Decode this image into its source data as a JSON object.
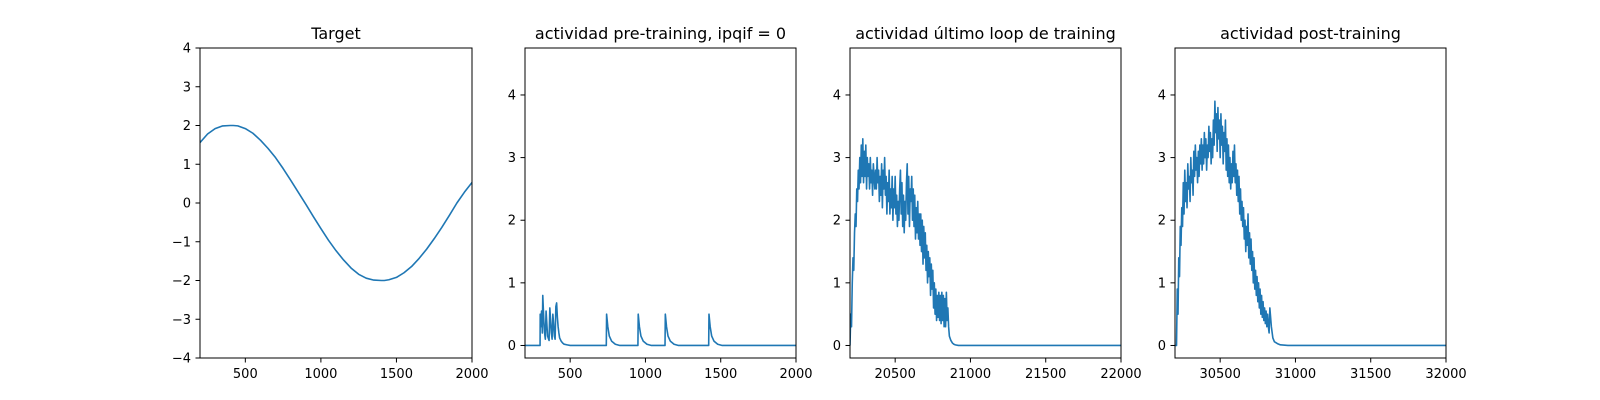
{
  "chart_data": [
    {
      "type": "line",
      "title": "Target",
      "xlim": [
        200,
        2000
      ],
      "ylim": [
        -4,
        4
      ],
      "xticks": [
        500,
        1000,
        1500,
        2000
      ],
      "yticks": [
        -4,
        -3,
        -2,
        -1,
        0,
        1,
        2,
        3,
        4
      ],
      "color": "#1f77b4",
      "series": [
        {
          "x": [
            200,
            250,
            300,
            350,
            400,
            420,
            450,
            500,
            550,
            600,
            650,
            700,
            750,
            800,
            850,
            900,
            950,
            1000,
            1050,
            1100,
            1150,
            1200,
            1250,
            1300,
            1350,
            1400,
            1420,
            1450,
            1500,
            1550,
            1600,
            1650,
            1700,
            1750,
            1800,
            1850,
            1900,
            1950,
            2000
          ],
          "y": [
            1.56,
            1.78,
            1.92,
            1.99,
            2.0,
            2.0,
            1.99,
            1.92,
            1.8,
            1.62,
            1.41,
            1.17,
            0.89,
            0.59,
            0.28,
            -0.03,
            -0.35,
            -0.66,
            -0.96,
            -1.23,
            -1.47,
            -1.68,
            -1.84,
            -1.94,
            -1.99,
            -2.0,
            -2.0,
            -1.98,
            -1.92,
            -1.8,
            -1.64,
            -1.43,
            -1.19,
            -0.92,
            -0.63,
            -0.32,
            0.0,
            0.28,
            0.53
          ]
        }
      ]
    },
    {
      "type": "line",
      "title": "actividad pre-training, ipqif = 0",
      "xlim": [
        200,
        2000
      ],
      "ylim": [
        -0.2,
        4.75
      ],
      "xticks": [
        500,
        1000,
        1500,
        2000
      ],
      "yticks": [
        0,
        1,
        2,
        3,
        4
      ],
      "color": "#1f77b4",
      "series": [
        {
          "x": [
            200,
            300,
            301,
            305,
            310,
            315,
            318,
            325,
            330,
            335,
            340,
            345,
            350,
            360,
            365,
            370,
            375,
            380,
            385,
            390,
            395,
            400,
            405,
            410,
            415,
            420,
            425,
            430,
            440,
            450,
            460,
            480,
            500,
            740,
            742,
            750,
            760,
            775,
            800,
            830,
            950,
            952,
            960,
            970,
            985,
            1010,
            1040,
            1130,
            1132,
            1140,
            1150,
            1165,
            1190,
            1220,
            1420,
            1422,
            1430,
            1440,
            1455,
            1480,
            1510,
            2000
          ],
          "y": [
            0,
            0,
            0.5,
            0.3,
            0.55,
            0.2,
            0.8,
            0.4,
            0.2,
            0.1,
            0.55,
            0.35,
            0.15,
            0.08,
            0.6,
            0.4,
            0.2,
            0.1,
            0.5,
            0.35,
            0.15,
            0.1,
            0.62,
            0.68,
            0.45,
            0.3,
            0.2,
            0.12,
            0.07,
            0.04,
            0.02,
            0.01,
            0,
            0,
            0.5,
            0.3,
            0.15,
            0.07,
            0.02,
            0,
            0,
            0.5,
            0.3,
            0.15,
            0.07,
            0.02,
            0,
            0,
            0.5,
            0.3,
            0.15,
            0.07,
            0.02,
            0,
            0,
            0.5,
            0.3,
            0.15,
            0.07,
            0.02,
            0,
            0
          ]
        }
      ]
    },
    {
      "type": "line",
      "title": "actividad último loop de training",
      "xlim": [
        20200,
        22000
      ],
      "ylim": [
        -0.2,
        4.75
      ],
      "xticks": [
        20500,
        21000,
        21500,
        22000
      ],
      "yticks": [
        0,
        1,
        2,
        3,
        4
      ],
      "color": "#1f77b4",
      "series": [
        {
          "x": [
            20200,
            20205,
            20210,
            20215,
            20220,
            20225,
            20230,
            20235,
            20240,
            20245,
            20250,
            20255,
            20260,
            20265,
            20270,
            20275,
            20280,
            20285,
            20290,
            20295,
            20300,
            20305,
            20310,
            20315,
            20320,
            20325,
            20330,
            20335,
            20340,
            20345,
            20350,
            20355,
            20360,
            20365,
            20370,
            20375,
            20380,
            20385,
            20390,
            20395,
            20400,
            20405,
            20410,
            20415,
            20420,
            20425,
            20430,
            20435,
            20440,
            20445,
            20450,
            20455,
            20460,
            20465,
            20470,
            20475,
            20480,
            20485,
            20490,
            20495,
            20500,
            20505,
            20510,
            20515,
            20520,
            20525,
            20530,
            20535,
            20540,
            20545,
            20550,
            20555,
            20560,
            20565,
            20570,
            20575,
            20580,
            20585,
            20590,
            20595,
            20600,
            20605,
            20610,
            20615,
            20620,
            20625,
            20630,
            20635,
            20640,
            20645,
            20650,
            20655,
            20660,
            20665,
            20670,
            20675,
            20680,
            20685,
            20690,
            20695,
            20700,
            20705,
            20710,
            20715,
            20720,
            20725,
            20730,
            20735,
            20740,
            20745,
            20750,
            20755,
            20760,
            20765,
            20770,
            20775,
            20780,
            20785,
            20790,
            20795,
            20800,
            20805,
            20810,
            20815,
            20820,
            20825,
            20830,
            20835,
            20840,
            20845,
            20850,
            20855,
            20860,
            20870,
            20880,
            20890,
            20900,
            20920,
            20950,
            21000,
            22000
          ],
          "y": [
            0,
            0.5,
            0.3,
            1.0,
            1.4,
            1.2,
            1.8,
            2.1,
            1.9,
            2.5,
            2.3,
            2.8,
            2.5,
            3.0,
            2.6,
            3.2,
            2.7,
            3.3,
            2.6,
            3.1,
            2.7,
            3.2,
            2.5,
            3.0,
            2.7,
            2.9,
            2.5,
            3.0,
            2.6,
            2.8,
            2.4,
            2.9,
            2.7,
            2.5,
            2.8,
            2.5,
            3.0,
            2.6,
            2.8,
            2.3,
            2.7,
            2.4,
            2.9,
            2.2,
            2.8,
            2.5,
            3.0,
            2.4,
            2.7,
            2.1,
            2.6,
            2.3,
            2.8,
            2.1,
            2.5,
            2.2,
            2.7,
            2.0,
            2.5,
            2.2,
            2.7,
            2.1,
            2.4,
            1.9,
            2.3,
            2.0,
            2.5,
            2.8,
            2.1,
            2.6,
            1.9,
            2.4,
            1.8,
            2.3,
            2.0,
            2.6,
            2.9,
            2.1,
            2.7,
            1.9,
            2.5,
            2.3,
            2.7,
            2.0,
            2.5,
            1.9,
            2.4,
            1.7,
            2.2,
            1.8,
            2.3,
            1.7,
            2.1,
            1.6,
            2.1,
            1.5,
            2.0,
            1.3,
            1.9,
            1.4,
            1.8,
            1.2,
            1.6,
            1.0,
            1.5,
            1.1,
            1.4,
            0.8,
            1.3,
            0.9,
            1.2,
            0.6,
            1.0,
            0.5,
            0.9,
            0.4,
            0.8,
            0.45,
            0.85,
            0.4,
            0.8,
            0.35,
            0.85,
            0.4,
            0.8,
            0.3,
            0.75,
            0.3,
            0.85,
            0.4,
            0.6,
            0.3,
            0.15,
            0.08,
            0.04,
            0.02,
            0.01,
            0,
            0,
            0,
            0
          ]
        }
      ]
    },
    {
      "type": "line",
      "title": "actividad post-training",
      "xlim": [
        30200,
        32000
      ],
      "ylim": [
        -0.2,
        4.75
      ],
      "xticks": [
        30500,
        31000,
        31500,
        32000
      ],
      "yticks": [
        0,
        1,
        2,
        3,
        4
      ],
      "color": "#1f77b4",
      "series": [
        {
          "x": [
            30200,
            30210,
            30215,
            30220,
            30225,
            30230,
            30235,
            30240,
            30245,
            30250,
            30255,
            30260,
            30265,
            30270,
            30275,
            30280,
            30285,
            30290,
            30295,
            30300,
            30305,
            30310,
            30315,
            30320,
            30325,
            30330,
            30335,
            30340,
            30345,
            30350,
            30355,
            30360,
            30365,
            30370,
            30375,
            30380,
            30385,
            30390,
            30395,
            30400,
            30405,
            30410,
            30415,
            30420,
            30425,
            30430,
            30435,
            30440,
            30445,
            30450,
            30455,
            30460,
            30465,
            30470,
            30475,
            30480,
            30485,
            30490,
            30495,
            30500,
            30505,
            30510,
            30515,
            30520,
            30525,
            30530,
            30535,
            30540,
            30545,
            30550,
            30555,
            30560,
            30565,
            30570,
            30575,
            30580,
            30585,
            30590,
            30595,
            30600,
            30605,
            30610,
            30615,
            30620,
            30625,
            30630,
            30635,
            30640,
            30645,
            30650,
            30655,
            30660,
            30665,
            30670,
            30675,
            30680,
            30685,
            30690,
            30695,
            30700,
            30705,
            30710,
            30715,
            30720,
            30725,
            30730,
            30735,
            30740,
            30745,
            30750,
            30755,
            30760,
            30765,
            30770,
            30775,
            30780,
            30785,
            30790,
            30795,
            30800,
            30805,
            30810,
            30815,
            30820,
            30825,
            30830,
            30840,
            30850,
            30860,
            30880,
            30900,
            30950,
            31000,
            32000
          ],
          "y": [
            0,
            0,
            0.9,
            0.5,
            1.4,
            1.1,
            1.9,
            1.6,
            2.2,
            1.9,
            2.6,
            2.1,
            2.8,
            2.3,
            2.6,
            2.2,
            2.9,
            2.5,
            2.7,
            2.3,
            3.0,
            2.6,
            2.8,
            2.4,
            3.1,
            2.7,
            3.2,
            2.8,
            3.0,
            2.6,
            3.1,
            2.7,
            3.2,
            2.9,
            3.3,
            2.8,
            3.2,
            2.9,
            3.4,
            3.0,
            3.3,
            2.8,
            3.2,
            3.0,
            3.5,
            3.1,
            3.4,
            2.9,
            3.3,
            3.0,
            3.6,
            3.2,
            3.9,
            3.4,
            3.7,
            3.1,
            3.8,
            3.3,
            3.6,
            3.0,
            3.7,
            3.2,
            3.5,
            2.9,
            3.4,
            3.1,
            3.6,
            2.8,
            3.3,
            2.7,
            3.2,
            2.6,
            3.0,
            2.5,
            2.9,
            2.6,
            3.1,
            2.7,
            3.2,
            2.6,
            2.9,
            2.4,
            2.8,
            2.3,
            2.7,
            2.1,
            2.5,
            2.0,
            2.3,
            1.9,
            2.2,
            1.7,
            2.0,
            1.5,
            1.9,
            1.6,
            2.1,
            1.4,
            1.8,
            1.3,
            1.7,
            1.2,
            1.5,
            1.0,
            1.4,
            0.9,
            1.2,
            0.8,
            1.1,
            0.7,
            1.0,
            0.6,
            0.9,
            0.5,
            0.8,
            0.45,
            0.7,
            0.4,
            0.6,
            0.35,
            0.55,
            0.3,
            0.5,
            0.3,
            0.2,
            0.6,
            0.3,
            0.12,
            0.06,
            0.03,
            0.01,
            0,
            0,
            0
          ]
        }
      ]
    }
  ]
}
